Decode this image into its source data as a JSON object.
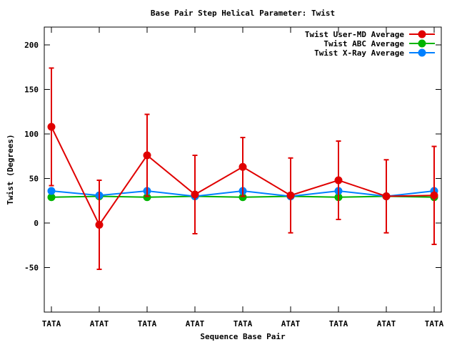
{
  "chart_data": {
    "type": "line",
    "title": "Base Pair Step Helical Parameter: Twist",
    "xlabel": "Sequence Base Pair",
    "ylabel": "Twist (Degrees)",
    "categories": [
      "TATA",
      "ATAT",
      "TATA",
      "ATAT",
      "TATA",
      "ATAT",
      "TATA",
      "ATAT",
      "TATA"
    ],
    "ylim": [
      -100,
      220
    ],
    "yticks": [
      -50,
      0,
      50,
      100,
      150,
      200
    ],
    "ytick_labels": [
      "-50",
      "0",
      "50",
      "100",
      "150",
      "200"
    ],
    "grid": false,
    "legend_position": "top-right",
    "series": [
      {
        "name": "Twist User-MD Average",
        "color": "#e00000",
        "values": [
          108,
          -2,
          76,
          32,
          63,
          31,
          48,
          30,
          31
        ],
        "error": [
          66,
          50,
          46,
          44,
          33,
          42,
          44,
          41,
          55
        ]
      },
      {
        "name": "Twist ABC Average",
        "color": "#00b400",
        "values": [
          29,
          30,
          29,
          30,
          29,
          30,
          29,
          30,
          29
        ]
      },
      {
        "name": "Twist X-Ray Average",
        "color": "#0080ff",
        "values": [
          36,
          31,
          36,
          30,
          36,
          30,
          36,
          30,
          36
        ]
      }
    ]
  }
}
